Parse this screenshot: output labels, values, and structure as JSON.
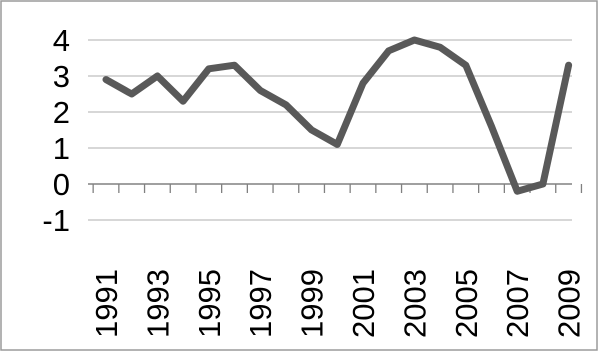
{
  "chart_data": {
    "type": "line",
    "title": "",
    "xlabel": "",
    "ylabel": "",
    "x": [
      1991,
      1992,
      1993,
      1994,
      1995,
      1996,
      1997,
      1998,
      1999,
      2000,
      2001,
      2002,
      2003,
      2004,
      2005,
      2006,
      2007,
      2008,
      2009
    ],
    "x_tick_labels": [
      "1991",
      "1993",
      "1995",
      "1997",
      "1999",
      "2001",
      "2003",
      "2005",
      "2007",
      "2009"
    ],
    "y_ticks": [
      -1,
      0,
      1,
      2,
      3,
      4
    ],
    "y_tick_labels": [
      "-1",
      "0",
      "1",
      "2",
      "3",
      "4"
    ],
    "ylim": [
      -1,
      4
    ],
    "grid": "horizontal",
    "legend": "none",
    "series": [
      {
        "color": "#595959",
        "values": [
          2.9,
          2.5,
          3.0,
          2.3,
          3.2,
          3.3,
          2.6,
          2.2,
          1.5,
          1.1,
          2.8,
          3.7,
          4.0,
          3.8,
          3.3,
          1.6,
          -0.2,
          0.0,
          3.3
        ]
      }
    ],
    "colors": {
      "gridline": "#bfbfbf",
      "axis": "#808080",
      "border": "#9a9a9a",
      "text": "#000000"
    }
  }
}
